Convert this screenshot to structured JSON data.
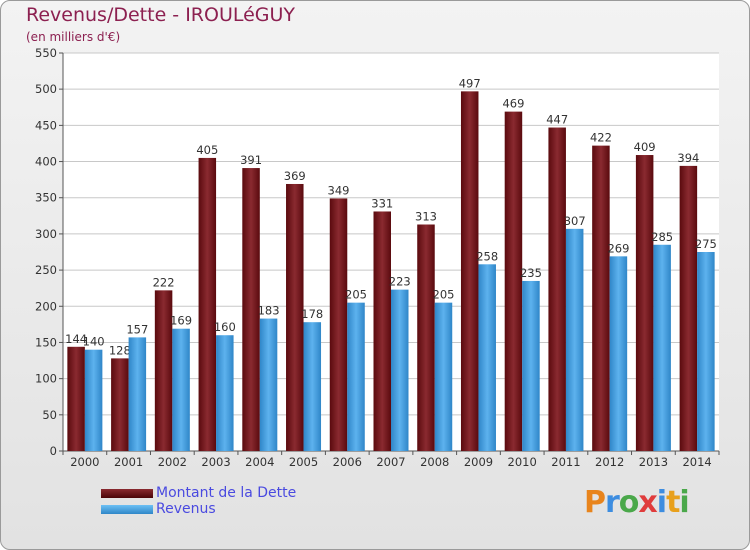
{
  "chart_data": {
    "type": "bar",
    "title": "Revenus/Dette - IROULéGUY",
    "subtitle": "(en milliers d'€)",
    "categories": [
      "2000",
      "2001",
      "2002",
      "2003",
      "2004",
      "2005",
      "2006",
      "2007",
      "2008",
      "2009",
      "2010",
      "2011",
      "2012",
      "2013",
      "2014"
    ],
    "series": [
      {
        "name": "Montant de la Dette",
        "color": "#7a1a1e",
        "values": [
          144,
          128,
          222,
          405,
          391,
          369,
          349,
          331,
          313,
          497,
          469,
          447,
          422,
          409,
          394
        ]
      },
      {
        "name": "Revenus",
        "color": "#4aa3e3",
        "values": [
          140,
          157,
          169,
          160,
          183,
          178,
          205,
          223,
          205,
          258,
          235,
          307,
          269,
          285,
          275
        ]
      }
    ],
    "ylim": [
      0,
      550
    ],
    "yticks": [
      0,
      50,
      100,
      150,
      200,
      250,
      300,
      350,
      400,
      450,
      500,
      550
    ],
    "grid": true,
    "legend": "bottom-left"
  },
  "logo": {
    "text": "Proxiti",
    "letters": [
      {
        "ch": "P",
        "color": "#e8841c"
      },
      {
        "ch": "r",
        "color": "#3d8de0"
      },
      {
        "ch": "o",
        "color": "#4aa84a"
      },
      {
        "ch": "x",
        "color": "#e03c3c"
      },
      {
        "ch": "i",
        "color": "#3d8de0"
      },
      {
        "ch": "t",
        "color": "#e8a01c"
      },
      {
        "ch": "i",
        "color": "#4aa84a"
      }
    ]
  }
}
